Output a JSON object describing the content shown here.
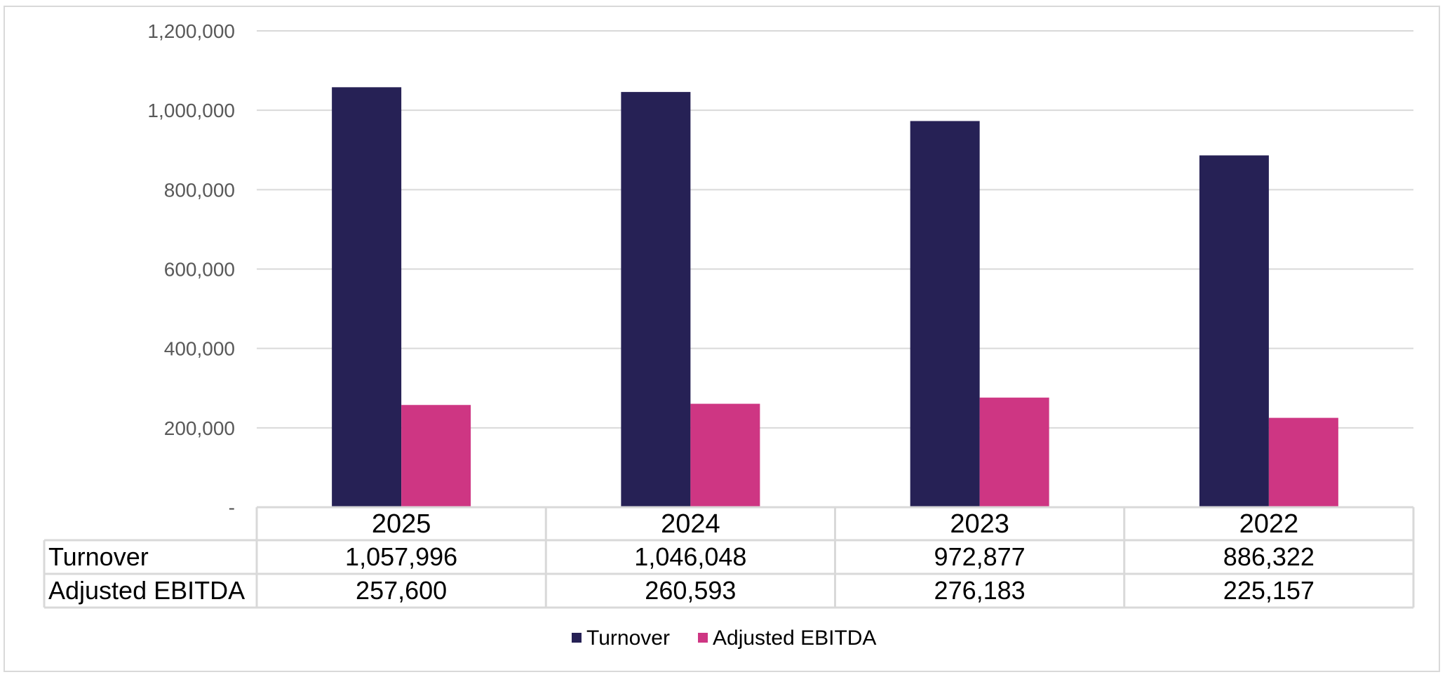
{
  "chart_data": {
    "type": "bar",
    "categories": [
      "2025",
      "2024",
      "2023",
      "2022"
    ],
    "series": [
      {
        "name": "Turnover",
        "color": "#262155",
        "values": [
          1057996,
          1046048,
          972877,
          886322
        ],
        "labels": [
          "1,057,996",
          "1,046,048",
          "972,877",
          "886,322"
        ]
      },
      {
        "name": "Adjusted EBITDA",
        "color": "#CE3683",
        "values": [
          257600,
          260593,
          276183,
          225157
        ],
        "labels": [
          "257,600",
          "260,593",
          "276,183",
          "225,157"
        ]
      }
    ],
    "yticks": [
      {
        "value": 0,
        "label": "-"
      },
      {
        "value": 200000,
        "label": "200,000"
      },
      {
        "value": 400000,
        "label": "400,000"
      },
      {
        "value": 600000,
        "label": "600,000"
      },
      {
        "value": 800000,
        "label": "800,000"
      },
      {
        "value": 1000000,
        "label": "1,000,000"
      },
      {
        "value": 1200000,
        "label": "1,200,000"
      }
    ],
    "ylim": [
      0,
      1200000
    ],
    "grid": true,
    "data_table": true,
    "legend_position": "bottom",
    "title": "",
    "xlabel": "",
    "ylabel": ""
  }
}
